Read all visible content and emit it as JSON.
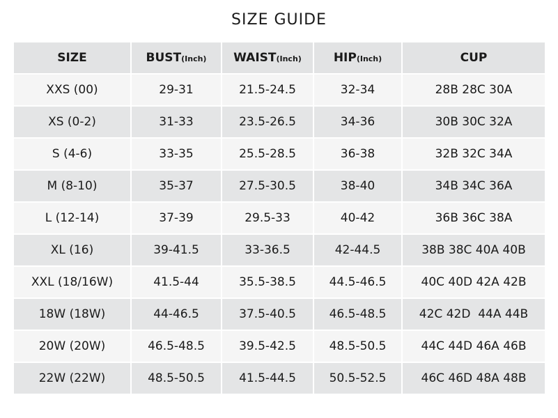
{
  "title": "SIZE GUIDE",
  "headers": [
    {
      "label": "SIZE",
      "unit": ""
    },
    {
      "label": "BUST",
      "unit": "(Inch)"
    },
    {
      "label": "WAIST",
      "unit": "(Inch)"
    },
    {
      "label": "HIP",
      "unit": "(Inch)"
    },
    {
      "label": "CUP",
      "unit": ""
    }
  ],
  "rows": [
    [
      "XXS (00)",
      "29-31",
      "21.5-24.5",
      "32-34",
      "28B 28C 30A"
    ],
    [
      "XS (0-2)",
      "31-33",
      "23.5-26.5",
      "34-36",
      "30B 30C 32A"
    ],
    [
      "S (4-6)",
      "33-35",
      "25.5-28.5",
      "36-38",
      "32B 32C 34A"
    ],
    [
      "M (8-10)",
      "35-37",
      "27.5-30.5",
      "38-40",
      "34B 34C 36A"
    ],
    [
      "L (12-14)",
      "37-39",
      "29.5-33",
      "40-42",
      "36B 36C 38A"
    ],
    [
      "XL (16)",
      "39-41.5",
      "33-36.5",
      "42-44.5",
      "38B 38C 40A 40B"
    ],
    [
      "XXL (18/16W)",
      "41.5-44",
      "35.5-38.5",
      "44.5-46.5",
      "40C 40D 42A 42B"
    ],
    [
      "18W (18W)",
      "44-46.5",
      "37.5-40.5",
      "46.5-48.5",
      "42C 42D  44A 44B"
    ],
    [
      "20W (20W)",
      "46.5-48.5",
      "39.5-42.5",
      "48.5-50.5",
      "44C 44D 46A 46B"
    ],
    [
      "22W (22W)",
      "48.5-50.5",
      "41.5-44.5",
      "50.5-52.5",
      "46C 46D 48A 48B"
    ]
  ]
}
